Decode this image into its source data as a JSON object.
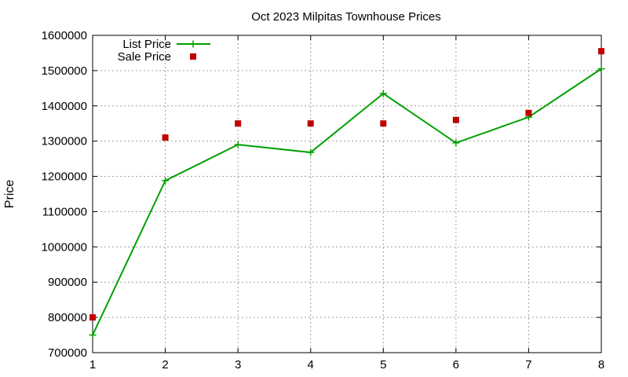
{
  "chart_data": {
    "type": "line",
    "title": "Oct 2023 Milpitas Townhouse Prices",
    "xlabel": "",
    "ylabel": "Price",
    "x": [
      1,
      2,
      3,
      4,
      5,
      6,
      7,
      8
    ],
    "xlim": [
      1,
      8
    ],
    "ylim": [
      700000,
      1600000
    ],
    "yticks": [
      700000,
      800000,
      900000,
      1000000,
      1100000,
      1200000,
      1300000,
      1400000,
      1500000,
      1600000
    ],
    "xticks": [
      1,
      2,
      3,
      4,
      5,
      6,
      7,
      8
    ],
    "grid": true,
    "legend_position": "top-left",
    "series": [
      {
        "name": "List Price",
        "style": "linespoints",
        "marker": "plus",
        "color": "#00a000",
        "values": [
          750000,
          1188000,
          1290000,
          1268000,
          1435000,
          1295000,
          1368000,
          1505000
        ]
      },
      {
        "name": "Sale Price",
        "style": "points",
        "marker": "square",
        "color": "#c00000",
        "values": [
          800000,
          1310000,
          1350000,
          1350000,
          1350000,
          1360000,
          1380000,
          1555000
        ]
      }
    ]
  }
}
